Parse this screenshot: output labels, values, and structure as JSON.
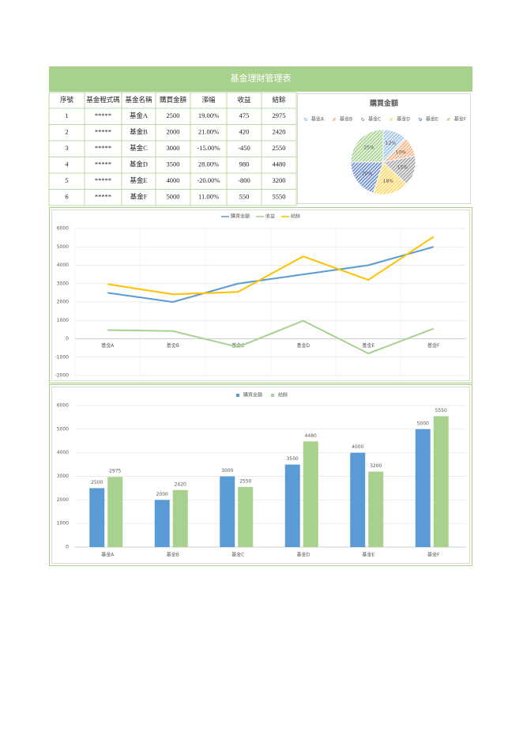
{
  "header": {
    "title": "基金理財管理表"
  },
  "table": {
    "columns": [
      "序號",
      "基金程式碼",
      "基金名稱",
      "購買金額",
      "漲幅",
      "收益",
      "結餘"
    ],
    "rows": [
      [
        1,
        "*****",
        "基金A",
        2500,
        "19.00%",
        475,
        2975
      ],
      [
        2,
        "*****",
        "基金B",
        2000,
        "21.00%",
        420,
        2420
      ],
      [
        3,
        "*****",
        "基金C",
        3000,
        "-15.00%",
        -450,
        2550
      ],
      [
        4,
        "*****",
        "基金D",
        3500,
        "28.00%",
        980,
        4480
      ],
      [
        5,
        "*****",
        "基金E",
        4000,
        "-20.00%",
        -800,
        3200
      ],
      [
        6,
        "*****",
        "基金F",
        5000,
        "11.00%",
        550,
        5550
      ]
    ]
  },
  "chart_data": [
    {
      "type": "pie",
      "title": "購買金額",
      "categories": [
        "基金A",
        "基金B",
        "基金C",
        "基金D",
        "基金E",
        "基金F"
      ],
      "values": [
        12,
        10,
        15,
        18,
        20,
        25
      ],
      "value_labels": [
        "12%",
        "10%",
        "15%",
        "18%",
        "20%",
        "25%"
      ],
      "colors": [
        "#9dc3e6",
        "#f4b183",
        "#a5a5a5",
        "#ffd966",
        "#6f8fd0",
        "#a9d18e"
      ]
    },
    {
      "type": "line",
      "categories": [
        "基金A",
        "基金B",
        "基金C",
        "基金D",
        "基金E",
        "基金F"
      ],
      "series": [
        {
          "name": "購買金額",
          "color": "#5b9bd5",
          "values": [
            2500,
            2000,
            3000,
            3500,
            4000,
            5000
          ]
        },
        {
          "name": "收益",
          "color": "#a9d18e",
          "values": [
            475,
            420,
            -450,
            980,
            -800,
            550
          ]
        },
        {
          "name": "結餘",
          "color": "#ffc000",
          "values": [
            2975,
            2420,
            2550,
            4480,
            3200,
            5550
          ]
        }
      ],
      "ylim": [
        -2000,
        6000
      ],
      "yticks": [
        -2000,
        -1000,
        0,
        1000,
        2000,
        3000,
        4000,
        5000,
        6000
      ],
      "grid": true,
      "legend": "top"
    },
    {
      "type": "bar",
      "categories": [
        "基金A",
        "基金B",
        "基金C",
        "基金D",
        "基金E",
        "基金F"
      ],
      "series": [
        {
          "name": "購買金額",
          "color": "#5b9bd5",
          "values": [
            2500,
            2000,
            3000,
            3500,
            4000,
            5000
          ]
        },
        {
          "name": "結餘",
          "color": "#a9d18e",
          "values": [
            2975,
            2420,
            2550,
            4480,
            3200,
            5550
          ]
        }
      ],
      "ylim": [
        0,
        6000
      ],
      "yticks": [
        0,
        1000,
        2000,
        3000,
        4000,
        5000,
        6000
      ],
      "grid": true,
      "legend": "top"
    }
  ]
}
